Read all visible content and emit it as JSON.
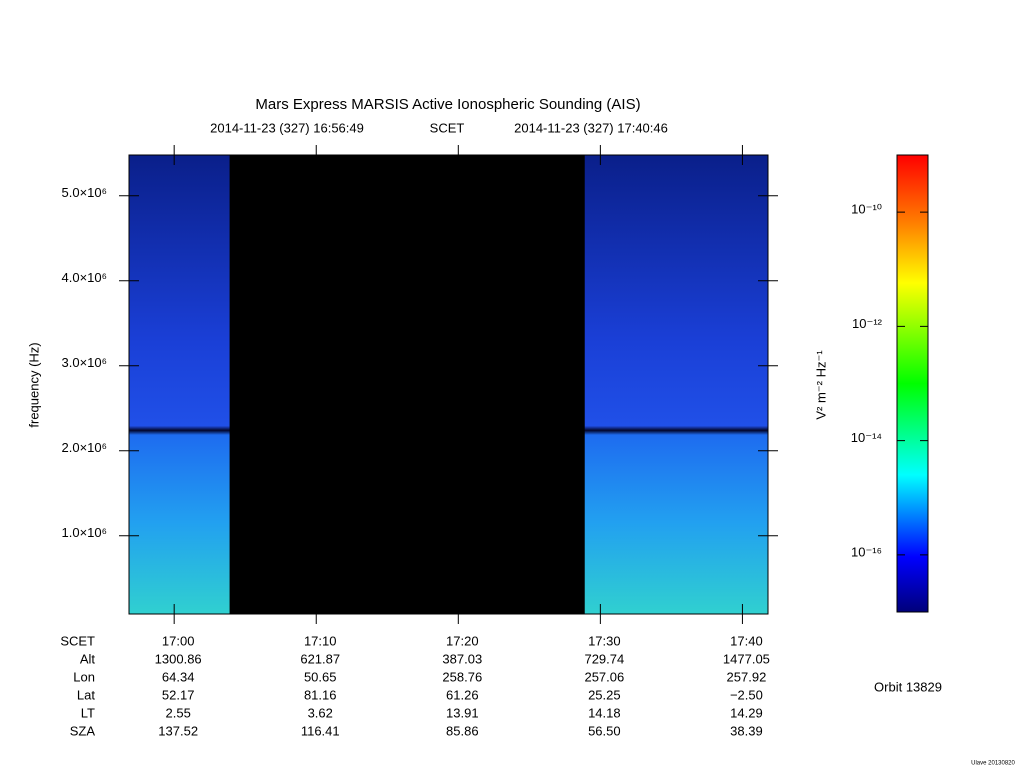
{
  "chart_data": {
    "type": "spectrogram",
    "title": "Mars Express MARSIS Active Ionospheric Sounding (AIS)",
    "time_range": {
      "start": "2014-11-23 (327) 16:56:49",
      "label": "SCET",
      "end": "2014-11-23 (327) 17:40:46"
    },
    "y_label": "frequency (Hz)",
    "ylim": [
      80000,
      5480000
    ],
    "yticks": [
      {
        "value": 1000000,
        "label": "1.0×10⁶"
      },
      {
        "value": 2000000,
        "label": "2.0×10⁶"
      },
      {
        "value": 3000000,
        "label": "3.0×10⁶"
      },
      {
        "value": 4000000,
        "label": "4.0×10⁶"
      },
      {
        "value": 5000000,
        "label": "5.0×10⁶"
      }
    ],
    "xlim": [
      1016.82,
      1061.8
    ],
    "xticks": [
      {
        "value": 1020,
        "label": "17:00"
      },
      {
        "value": 1030,
        "label": "17:10"
      },
      {
        "value": 1040,
        "label": "17:20"
      },
      {
        "value": 1050,
        "label": "17:30"
      },
      {
        "value": 1060,
        "label": "17:40"
      }
    ],
    "x_row_label": "SCET",
    "coverage": [
      {
        "start": 1016.82,
        "end": 1023.9
      },
      {
        "start": 1048.9,
        "end": 1061.8
      }
    ],
    "ephemeris": [
      {
        "label": "Alt",
        "values": [
          "1300.86",
          "621.87",
          "387.03",
          "729.74",
          "1477.05"
        ]
      },
      {
        "label": "Lon",
        "values": [
          "64.34",
          "50.65",
          "258.76",
          "257.06",
          "257.92"
        ]
      },
      {
        "label": "Lat",
        "values": [
          "52.17",
          "81.16",
          "61.26",
          "25.25",
          "−2.50"
        ]
      },
      {
        "label": "LT",
        "values": [
          "2.55",
          "3.62",
          "13.91",
          "14.18",
          "14.29"
        ]
      },
      {
        "label": "SZA",
        "values": [
          "137.52",
          "116.41",
          "85.86",
          "56.50",
          "38.39"
        ]
      }
    ],
    "colorbar": {
      "label": "V² m⁻² Hz⁻¹",
      "log": true,
      "zlim": [
        1e-17,
        1e-09
      ],
      "ticks": [
        {
          "value": 1e-10,
          "label": "10⁻¹⁰"
        },
        {
          "value": 1e-12,
          "label": "10⁻¹²"
        },
        {
          "value": 1e-14,
          "label": "10⁻¹⁴"
        },
        {
          "value": 1e-16,
          "label": "10⁻¹⁶"
        }
      ]
    },
    "orbit": "Orbit 13829",
    "credit": "Ulave 20130820"
  }
}
